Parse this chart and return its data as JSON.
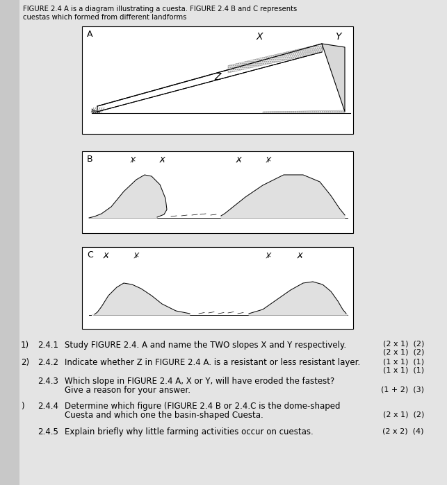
{
  "bg_color": "#c8c8c8",
  "content_bg": "#e8e8e8",
  "white": "#ffffff",
  "header_line1": "FIGURE 2.4 A is a diagram illustrating a cuesta. FIGURE 2.4 B and C represents",
  "header_line2": "cuestas which formed from different landforms",
  "fig_label_a": "A",
  "fig_label_b": "B",
  "fig_label_c": "C",
  "q241_prefix": "1)",
  "q241_num": "2.4.1",
  "q241_text": "Study FIGURE 2.4. A and name the TWO slopes X and Y respectively.",
  "q241_mark1": "(2 x 1)",
  "q241_mark2": "(2)",
  "q242_prefix": "2)",
  "q242_num": "2.4.2",
  "q242_text": "Indicate whether Z in FIGURE 2.4 A. is a resistant or less resistant layer.",
  "q242_mark1": "(1 x 1)",
  "q242_mark2": "(1)",
  "q243_num": "2.4.3",
  "q243_text1": "Which slope in FIGURE 2.4 A, X or Y, will have eroded the fastest?",
  "q243_text2": "Give a reason for your answer.",
  "q243_mark1": "(1 + 2)",
  "q243_mark2": "(3)",
  "q244_prefix": ")",
  "q244_num": "2.4.4",
  "q244_text1": "Determine which figure (FIGURE 2.4 B or 2.4.C is the dome-shaped",
  "q244_text2": "Cuesta and which one the basin-shaped Cuesta.",
  "q244_mark1": "(2 x 1)",
  "q244_mark2": "(2)",
  "q245_num": "2.4.5",
  "q245_text": "Explain briefly why little farming activities occur on cuestas.",
  "q245_mark1": "(2 x 2)",
  "q245_mark2": "(4)"
}
